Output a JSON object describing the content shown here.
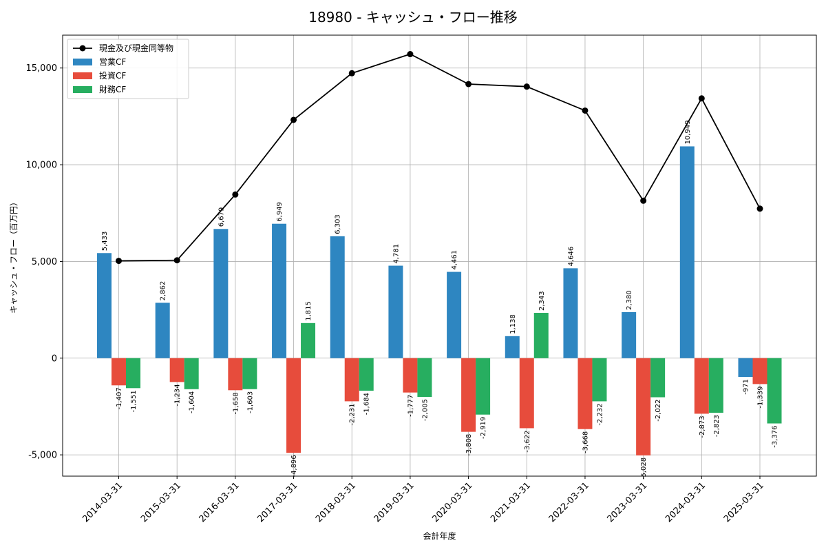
{
  "chart_data": {
    "type": "bar",
    "title": "18980 - キャッシュ・フロー推移",
    "xlabel": "会計年度",
    "ylabel": "キャッシュ・フロー（百万円）",
    "categories": [
      "2014-03-31",
      "2015-03-31",
      "2016-03-31",
      "2017-03-31",
      "2018-03-31",
      "2019-03-31",
      "2020-03-31",
      "2021-03-31",
      "2022-03-31",
      "2023-03-31",
      "2024-03-31",
      "2025-03-31"
    ],
    "ylim": [
      -6100,
      16700
    ],
    "yticks": [
      -5000,
      0,
      5000,
      10000,
      15000
    ],
    "ytick_labels": [
      "-5,000",
      "0",
      "5,000",
      "10,000",
      "15,000"
    ],
    "grid": true,
    "legend_position": "top-left",
    "series": [
      {
        "name": "営業CF",
        "kind": "bar",
        "color": "#2e86c1",
        "values": [
          5433,
          2862,
          6679,
          6949,
          6303,
          4781,
          4461,
          1138,
          4646,
          2380,
          10949,
          -971
        ],
        "labels": [
          "5,433",
          "2,862",
          "6,679",
          "6,949",
          "6,303",
          "4,781",
          "4,461",
          "1,138",
          "4,646",
          "2,380",
          "10,949",
          "-971"
        ]
      },
      {
        "name": "投資CF",
        "kind": "bar",
        "color": "#e74c3c",
        "values": [
          -1407,
          -1234,
          -1658,
          -4896,
          -2231,
          -1777,
          -3808,
          -3622,
          -3668,
          -5028,
          -2873,
          -1339
        ],
        "labels": [
          "-1,407",
          "-1,234",
          "-1,658",
          "-4,896",
          "-2,231",
          "-1,777",
          "-3,808",
          "-3,622",
          "-3,668",
          "-5,028",
          "-2,873",
          "-1,339"
        ]
      },
      {
        "name": "財務CF",
        "kind": "bar",
        "color": "#27ae60",
        "values": [
          -1551,
          -1604,
          -1603,
          1815,
          -1684,
          -2005,
          -2919,
          2343,
          -2232,
          -2022,
          -2823,
          -3376
        ],
        "labels": [
          "-1,551",
          "-1,604",
          "-1,603",
          "1,815",
          "-1,684",
          "-2,005",
          "-2,919",
          "2,343",
          "-2,232",
          "-2,022",
          "-2,823",
          "-3,376"
        ]
      },
      {
        "name": "現金及び現金同等物",
        "kind": "line",
        "color": "#000000",
        "values": [
          5030,
          5060,
          8460,
          12320,
          14730,
          15720,
          14170,
          14040,
          12800,
          8140,
          13430,
          7730
        ]
      }
    ]
  }
}
